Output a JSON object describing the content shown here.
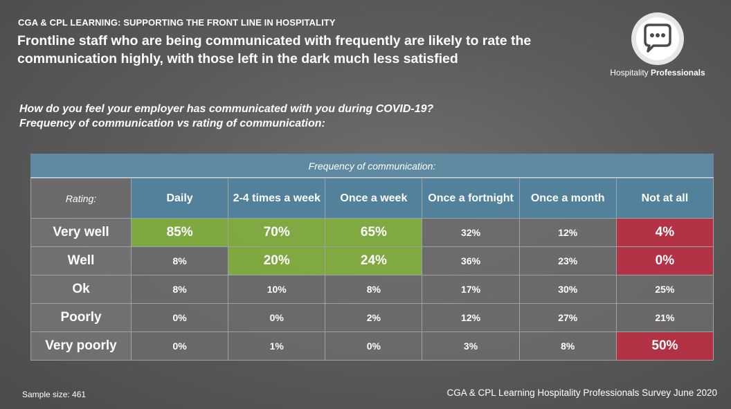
{
  "header": {
    "kicker": "CGA & CPL LEARNING: SUPPORTING THE FRONT LINE IN HOSPITALITY",
    "headline": "Frontline staff who are being communicated with frequently are likely to rate the communication highly, with those left in the dark much less satisfied"
  },
  "logo": {
    "icon": "speech-bubble-icon",
    "text_plain": "Hospitality ",
    "text_bold": "Professionals"
  },
  "question": {
    "line1": "How do you feel your employer has communicated with you during COVID-19?",
    "line2": "Frequency of communication vs rating of communication:"
  },
  "colors": {
    "header_blue": "#52829b",
    "high_green": "#82b03e",
    "alert_red": "#ba3044"
  },
  "chart_data": {
    "type": "table",
    "title": "Frequency of communication:",
    "row_header_label": "Rating:",
    "columns": [
      "Daily",
      "2-4 times a week",
      "Once a week",
      "Once a fortnight",
      "Once a month",
      "Not at all"
    ],
    "rows": [
      {
        "label": "Very well",
        "values": [
          "85%",
          "70%",
          "65%",
          "32%",
          "12%",
          "4%"
        ],
        "highlight": [
          "green",
          "green",
          "green",
          "",
          "",
          "red"
        ]
      },
      {
        "label": "Well",
        "values": [
          "8%",
          "20%",
          "24%",
          "36%",
          "23%",
          "0%"
        ],
        "highlight": [
          "",
          "green",
          "green",
          "",
          "",
          "red"
        ]
      },
      {
        "label": "Ok",
        "values": [
          "8%",
          "10%",
          "8%",
          "17%",
          "30%",
          "25%"
        ],
        "highlight": [
          "",
          "",
          "",
          "",
          "",
          ""
        ]
      },
      {
        "label": "Poorly",
        "values": [
          "0%",
          "0%",
          "2%",
          "12%",
          "27%",
          "21%"
        ],
        "highlight": [
          "",
          "",
          "",
          "",
          "",
          ""
        ]
      },
      {
        "label": "Very poorly",
        "values": [
          "0%",
          "1%",
          "0%",
          "3%",
          "8%",
          "50%"
        ],
        "highlight": [
          "",
          "",
          "",
          "",
          "",
          "red"
        ]
      }
    ]
  },
  "footer": {
    "sample": "Sample size: 461",
    "source": "CGA & CPL Learning Hospitality Professionals Survey June 2020"
  }
}
